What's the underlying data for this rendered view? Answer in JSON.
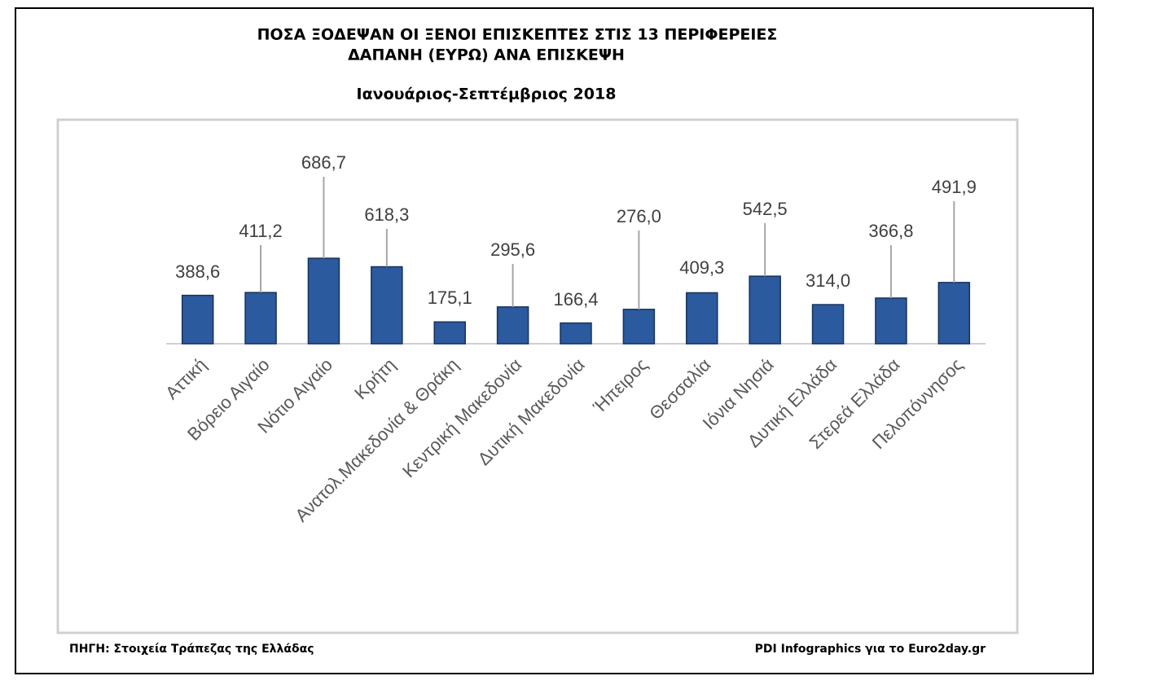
{
  "chart_data": {
    "type": "bar",
    "title": "ΠΟΣΑ ΞΟΔΕΨΑΝ ΟΙ ΞΕΝΟΙ ΕΠΙΣΚΕΠΤΕΣ ΣΤΙΣ 13 ΠΕΡΙΦΕΡΕΙΕΣ",
    "subtitle": "ΔΑΠΑΝΗ (ΕΥΡΩ) ΑΝΑ ΕΠΙΣΚΕΨΗ",
    "period": "Ιανουάριος-Σεπτέμβριος 2018",
    "source": "ΠΗΓΗ: Στοιχεία Τράπεζας της Ελλάδας",
    "credit": "PDI Infographics για το Euro2day.gr",
    "categories": [
      "Αττική",
      "Βόρειο Αιγαίο",
      "Νότιο Αιγαίο",
      "Κρήτη",
      "Ανατολ.Μακεδονία & Θράκη",
      "Κεντρική Μακεδονία",
      "Δυτική Μακεδονία",
      "Ήπειρος",
      "Θεσσαλία",
      "Ιόνια Νησιά",
      "Δυτική Ελλάδα",
      "Στερεά Ελλάδα",
      "Πελοπόννησος"
    ],
    "values": [
      388.6,
      411.2,
      686.7,
      618.3,
      175.1,
      295.6,
      166.4,
      276.0,
      409.3,
      542.5,
      314.0,
      366.8,
      491.9
    ],
    "value_labels": [
      "388,6",
      "411,2",
      "686,7",
      "618,3",
      "175,1",
      "295,6",
      "166,4",
      "276,0",
      "409,3",
      "542,5",
      "314,0",
      "366,8",
      "491,9"
    ],
    "color": "#2b5a9e",
    "ylim": [
      0,
      1800
    ]
  }
}
